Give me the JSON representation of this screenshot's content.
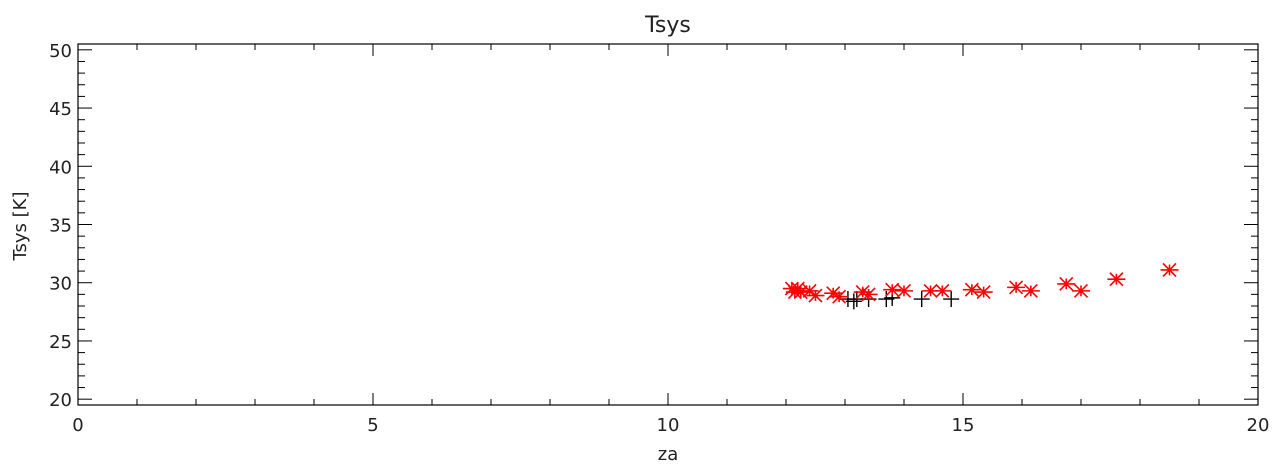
{
  "chart_data": {
    "type": "scatter",
    "title": "Tsys",
    "xlabel": "za",
    "ylabel": "Tsys [K]",
    "xlim": [
      0,
      20
    ],
    "ylim": [
      19.5,
      50.5
    ],
    "x_ticks": [
      0,
      5,
      10,
      15,
      20
    ],
    "y_ticks": [
      20,
      25,
      30,
      35,
      40,
      45,
      50
    ],
    "grid": false,
    "legend": "none",
    "colors": {
      "asterisk": "#ff0000",
      "plus": "#000000",
      "axes": "#000000"
    },
    "series": [
      {
        "marker": "plus",
        "color": "#000000",
        "points": [
          [
            13.05,
            28.6
          ],
          [
            13.15,
            28.4
          ],
          [
            13.2,
            28.6
          ],
          [
            13.4,
            28.6
          ],
          [
            13.7,
            28.6
          ],
          [
            13.8,
            28.7
          ],
          [
            14.3,
            28.6
          ],
          [
            14.8,
            28.6
          ]
        ]
      },
      {
        "marker": "asterisk",
        "color": "#ff0000",
        "points": [
          [
            12.1,
            29.5
          ],
          [
            12.15,
            29.2
          ],
          [
            12.2,
            29.5
          ],
          [
            12.25,
            29.2
          ],
          [
            12.4,
            29.3
          ],
          [
            12.5,
            28.9
          ],
          [
            12.8,
            29.1
          ],
          [
            12.9,
            28.8
          ],
          [
            13.3,
            29.2
          ],
          [
            13.4,
            29.0
          ],
          [
            13.8,
            29.4
          ],
          [
            14.0,
            29.3
          ],
          [
            14.45,
            29.3
          ],
          [
            14.65,
            29.3
          ],
          [
            15.15,
            29.4
          ],
          [
            15.35,
            29.2
          ],
          [
            15.9,
            29.6
          ],
          [
            16.15,
            29.3
          ],
          [
            16.75,
            29.9
          ],
          [
            17.0,
            29.3
          ],
          [
            17.6,
            30.3
          ],
          [
            18.5,
            31.1
          ]
        ]
      }
    ]
  }
}
